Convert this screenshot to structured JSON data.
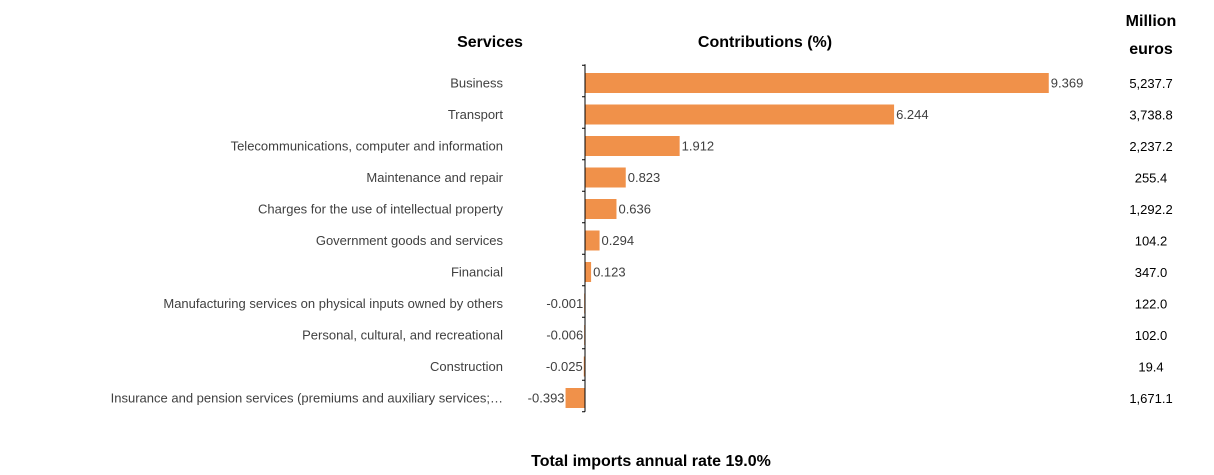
{
  "headers": {
    "services": "Services",
    "contributions": "Contributions (%)",
    "million_line1": "Million",
    "million_line2": "euros"
  },
  "footer": "Total imports annual rate 19.0%",
  "colors": {
    "bar": "#F0914A",
    "axis": "#000000"
  },
  "chart_data": {
    "type": "bar",
    "orientation": "horizontal",
    "categories": [
      "Business",
      "Transport",
      "Telecommunications, computer and information",
      "Maintenance and repair",
      "Charges for the use of intellectual property",
      "Government goods and services",
      "Financial",
      "Manufacturing services on physical inputs owned by others",
      "Personal, cultural, and recreational",
      "Construction",
      "Insurance and pension services (premiums and auxiliary services;…"
    ],
    "values": [
      9.369,
      6.244,
      1.912,
      0.823,
      0.636,
      0.294,
      0.123,
      -0.001,
      -0.006,
      -0.025,
      -0.393
    ],
    "value_labels": [
      "9.369",
      "6.244",
      "1.912",
      "0.823",
      "0.636",
      "0.294",
      "0.123",
      "-0.001",
      "-0.006",
      "-0.025",
      "-0.393"
    ],
    "million_euros": [
      "5,237.7",
      "3,738.8",
      "2,237.2",
      "255.4",
      "1,292.2",
      "104.2",
      "347.0",
      "122.0",
      "102.0",
      "19.4",
      "1,671.1"
    ],
    "title": "",
    "xlabel": "Contributions (%)",
    "ylabel": "Services",
    "grid": false,
    "legend": "none"
  }
}
